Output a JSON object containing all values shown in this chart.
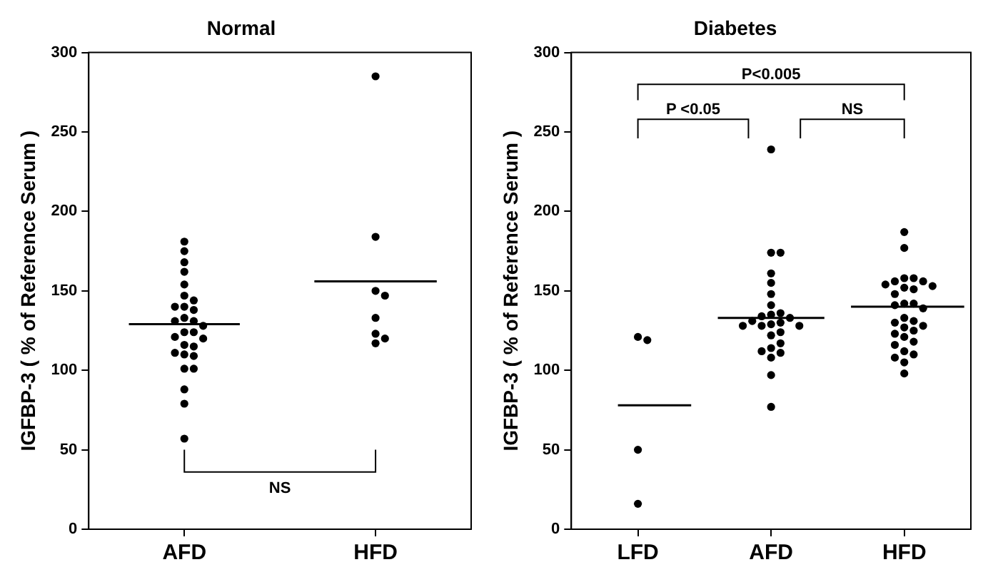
{
  "chart_data": [
    {
      "type": "scatter",
      "title": "Normal",
      "ylabel": "IGFBP-3 ( % of Reference Serum )",
      "categories": [
        "AFD",
        "HFD"
      ],
      "ylim": [
        0,
        300
      ],
      "yticks": [
        0,
        50,
        100,
        150,
        200,
        250,
        300
      ],
      "grid": false,
      "legend": false,
      "annotations": [
        "NS"
      ],
      "series": [
        {
          "color": "#000000",
          "marker": "circle",
          "x": [
            "AFD",
            "AFD",
            "AFD",
            "AFD",
            "AFD",
            "AFD",
            "AFD",
            "AFD",
            "AFD",
            "AFD",
            "AFD",
            "AFD",
            "AFD",
            "AFD",
            "AFD",
            "AFD",
            "AFD",
            "AFD",
            "AFD",
            "AFD",
            "AFD",
            "AFD",
            "AFD",
            "AFD",
            "AFD",
            "AFD",
            "AFD",
            "AFD",
            "HFD",
            "HFD",
            "HFD",
            "HFD",
            "HFD",
            "HFD",
            "HFD",
            "HFD"
          ],
          "values": [
            181,
            175,
            168,
            162,
            154,
            147,
            144,
            140,
            140,
            138,
            133,
            131,
            131,
            128,
            124,
            124,
            121,
            120,
            116,
            115,
            111,
            110,
            109,
            101,
            101,
            88,
            79,
            57,
            285,
            184,
            150,
            147,
            133,
            123,
            120,
            117
          ]
        }
      ],
      "ref_lines": [
        {
          "axis": "y",
          "value": 129,
          "color": "#000000"
        },
        {
          "axis": "y",
          "value": 156,
          "color": "#000000"
        }
      ]
    },
    {
      "type": "scatter",
      "title": "Diabetes",
      "ylabel": "IGFBP-3 ( % of Reference Serum )",
      "categories": [
        "LFD",
        "AFD",
        "HFD"
      ],
      "ylim": [
        0,
        300
      ],
      "yticks": [
        0,
        50,
        100,
        150,
        200,
        250,
        300
      ],
      "grid": false,
      "legend": false,
      "annotations": [
        "P<0.005",
        "P <0.05",
        "NS"
      ],
      "series": [
        {
          "color": "#000000",
          "marker": "circle",
          "x": [
            "LFD",
            "LFD",
            "LFD",
            "LFD",
            "AFD",
            "AFD",
            "AFD",
            "AFD",
            "AFD",
            "AFD",
            "AFD",
            "AFD",
            "AFD",
            "AFD",
            "AFD",
            "AFD",
            "AFD",
            "AFD",
            "AFD",
            "AFD",
            "AFD",
            "AFD",
            "AFD",
            "AFD",
            "AFD",
            "AFD",
            "AFD",
            "AFD",
            "AFD",
            "AFD",
            "HFD",
            "HFD",
            "HFD",
            "HFD",
            "HFD",
            "HFD",
            "HFD",
            "HFD",
            "HFD",
            "HFD",
            "HFD",
            "HFD",
            "HFD",
            "HFD",
            "HFD",
            "HFD",
            "HFD",
            "HFD",
            "HFD",
            "HFD",
            "HFD",
            "HFD",
            "HFD",
            "HFD",
            "HFD",
            "HFD",
            "HFD",
            "HFD",
            "HFD",
            "HFD"
          ],
          "values": [
            121,
            119,
            50,
            16,
            239,
            174,
            174,
            161,
            155,
            148,
            141,
            136,
            135,
            134,
            133,
            131,
            130,
            129,
            128,
            128,
            128,
            124,
            122,
            117,
            114,
            112,
            111,
            108,
            97,
            77,
            187,
            177,
            158,
            158,
            156,
            156,
            154,
            153,
            152,
            151,
            148,
            142,
            142,
            141,
            139,
            133,
            131,
            130,
            128,
            127,
            125,
            123,
            121,
            118,
            116,
            112,
            110,
            108,
            105,
            98
          ]
        }
      ],
      "ref_lines": [
        {
          "axis": "y",
          "value": 78,
          "color": "#000000"
        },
        {
          "axis": "y",
          "value": 133,
          "color": "#000000"
        },
        {
          "axis": "y",
          "value": 140,
          "color": "#000000"
        }
      ]
    }
  ]
}
